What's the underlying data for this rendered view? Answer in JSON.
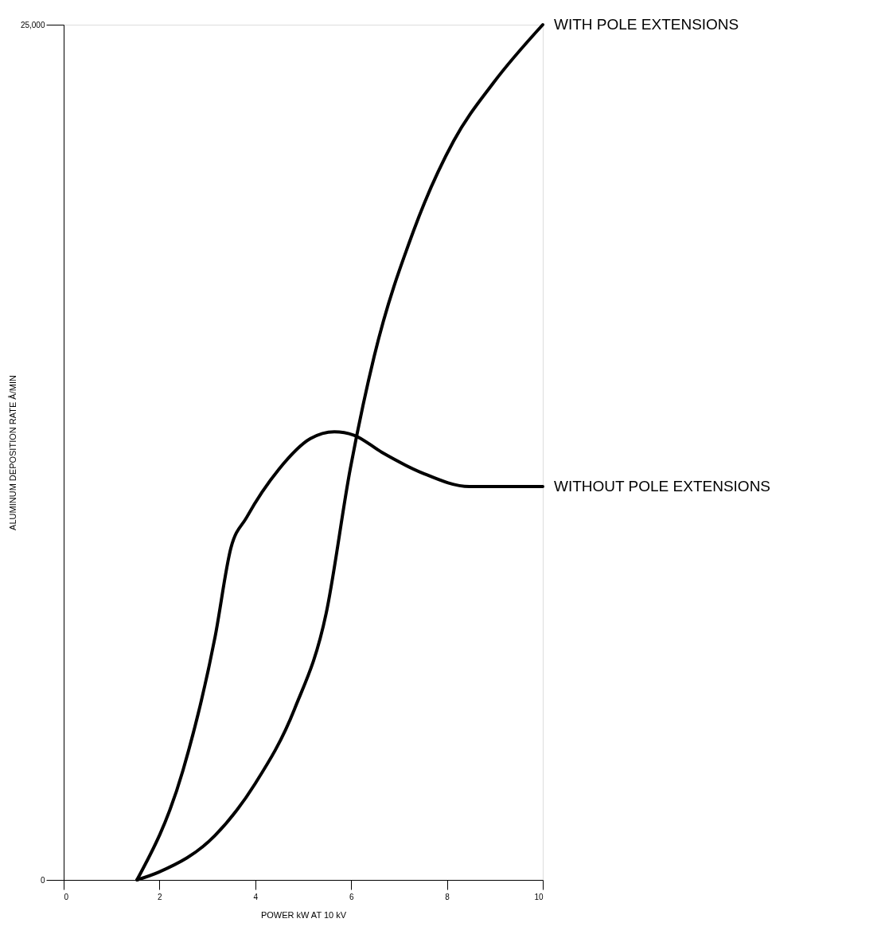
{
  "chart_data": {
    "type": "line",
    "xlabel": "POWER kW AT 10 kV",
    "ylabel": "ALUMINUM DEPOSITION RATE Å/MIN",
    "xlim": [
      0,
      10
    ],
    "ylim": [
      0,
      25000
    ],
    "xticks": [
      0,
      2,
      4,
      6,
      8,
      10
    ],
    "yticks": [
      0,
      {
        "value": 25000,
        "label": "25,000"
      }
    ],
    "grid": false,
    "legend": false,
    "marker": "none",
    "line_style": "solid",
    "series": [
      {
        "name": "WITH POLE EXTENSIONS",
        "color": "#000000",
        "x": [
          1.53,
          1.99,
          3.16,
          3.99,
          4.82,
          5.48,
          5.98,
          6.48,
          7.31,
          8.14,
          8.97,
          10
        ],
        "values": [
          0,
          230,
          1300,
          2800,
          5000,
          7800,
          12000,
          15300,
          19000,
          21600,
          23300,
          25000
        ]
      },
      {
        "name": "WITHOUT POLE EXTENSIONS",
        "color": "#000000",
        "x": [
          1.53,
          2.49,
          3.16,
          3.49,
          3.82,
          4.49,
          5.15,
          5.65,
          6.06,
          6.64,
          7.48,
          8.47,
          10
        ],
        "values": [
          0,
          3200,
          7100,
          9700,
          10600,
          12000,
          12900,
          13100,
          13000,
          12500,
          11900,
          11500,
          11500
        ]
      }
    ]
  }
}
